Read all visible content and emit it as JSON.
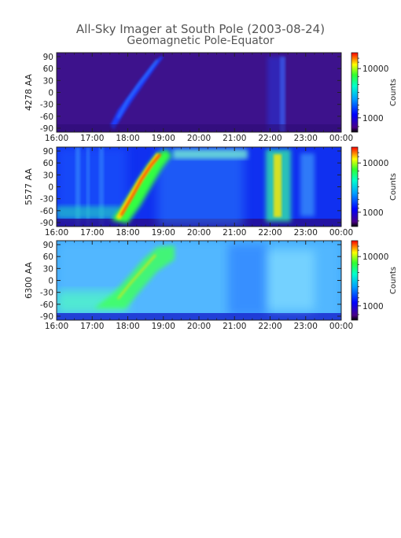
{
  "page": {
    "title": "All-Sky Imager at South Pole (2003-08-24)",
    "subtitle": "Geomagnetic Pole-Equator"
  },
  "chart_data": [
    {
      "type": "heatmap",
      "ylabel": "4278 AA",
      "x_ticks": [
        "16:00",
        "17:00",
        "18:00",
        "19:00",
        "20:00",
        "21:00",
        "22:00",
        "23:00",
        "00:00"
      ],
      "y_ticks": [
        "90",
        "60",
        "30",
        "0",
        "-30",
        "-60",
        "-90"
      ],
      "ylim": [
        -90,
        90
      ],
      "colorbar": {
        "label": "Counts",
        "ticks": [
          "10000",
          "1000"
        ],
        "scale": "log"
      }
    },
    {
      "type": "heatmap",
      "ylabel": "5577 AA",
      "x_ticks": [
        "16:00",
        "17:00",
        "18:00",
        "19:00",
        "20:00",
        "21:00",
        "22:00",
        "23:00",
        "00:00"
      ],
      "y_ticks": [
        "90",
        "60",
        "30",
        "0",
        "-30",
        "-60",
        "-90"
      ],
      "ylim": [
        -90,
        90
      ],
      "colorbar": {
        "label": "Counts",
        "ticks": [
          "10000",
          "1000"
        ],
        "scale": "log"
      }
    },
    {
      "type": "heatmap",
      "ylabel": "6300 AA",
      "x_ticks": [
        "16:00",
        "17:00",
        "18:00",
        "19:00",
        "20:00",
        "21:00",
        "22:00",
        "23:00",
        "00:00"
      ],
      "y_ticks": [
        "90",
        "60",
        "30",
        "0",
        "-30",
        "-60",
        "-90"
      ],
      "ylim": [
        -90,
        90
      ],
      "colorbar": {
        "label": "Counts",
        "ticks": [
          "10000",
          "1000"
        ],
        "scale": "log"
      }
    }
  ]
}
